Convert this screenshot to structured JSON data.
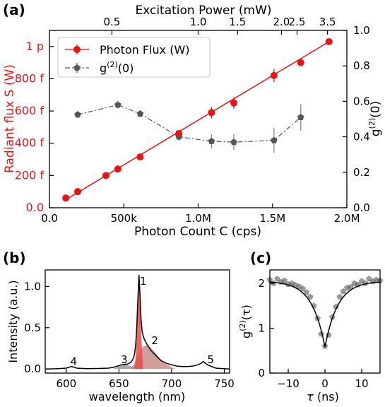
{
  "chart_data": [
    {
      "panel_label": "(a)",
      "type": "scatter",
      "xlabel": "Photon Count C (cps)",
      "x_ticks": [
        "0.0",
        "500k",
        "1.0M",
        "1.5M",
        "2.0M"
      ],
      "xlim": [
        0,
        2000000
      ],
      "ylabel_left": "Radiant flux S (W)",
      "y_left_ticks": [
        "0.0",
        "200 f",
        "400 f",
        "600 f",
        "800 f",
        "1 p"
      ],
      "ylim_left": [
        0,
        1.1e-12
      ],
      "ylabel_right_base": "g",
      "ylabel_right_sup": "(2)",
      "ylabel_right_tail": "(0)",
      "y_right_ticks": [
        "0.0",
        "0.2",
        "0.4",
        "0.6",
        "0.8",
        "1.0"
      ],
      "ylim_right": [
        0,
        1.0
      ],
      "top_xlabel": "Excitation Power (mW)",
      "top_ticks": [
        {
          "label": "0.5",
          "x": 420000
        },
        {
          "label": "1.0",
          "x": 1000000
        },
        {
          "label": "1.5",
          "x": 1265000
        },
        {
          "label": "2.0",
          "x": 1560000
        },
        {
          "label": "2.5",
          "x": 1665000
        },
        {
          "label": "3.5",
          "x": 1870000
        }
      ],
      "grid": false,
      "legend_position": "top-left",
      "colors": {
        "flux": "#ee1111",
        "g2": "#555555"
      },
      "series": [
        {
          "name": "Photon Flux (W)",
          "axis": "left",
          "style": "marker+fit-line",
          "x": [
            110000,
            190000,
            380000,
            460000,
            610000,
            870000,
            1090000,
            1240000,
            1510000,
            1690000,
            1880000
          ],
          "y": [
            6e-14,
            1e-13,
            2e-13,
            2.4e-13,
            3.15e-13,
            4.6e-13,
            5.9e-13,
            6.5e-13,
            8.2e-13,
            9e-13,
            1.03e-12
          ],
          "yerr": [
            1e-14,
            1e-14,
            1e-14,
            1e-14,
            1.2e-14,
            2e-14,
            3.5e-14,
            3.5e-14,
            4e-14,
            1.5e-14,
            1.5e-14
          ],
          "fit": {
            "x": [
              110000,
              1880000
            ],
            "y": [
              5e-14,
              1.03e-12
            ]
          }
        },
        {
          "name": "g^(2)(0)",
          "legend_base": "g",
          "legend_sup": "(2)",
          "legend_tail": "(0)",
          "axis": "right",
          "style": "marker+dashdot",
          "x": [
            190000,
            460000,
            610000,
            870000,
            1090000,
            1240000,
            1510000,
            1690000
          ],
          "y": [
            0.525,
            0.58,
            0.53,
            0.4,
            0.375,
            0.37,
            0.38,
            0.51
          ],
          "yerr": [
            0.02,
            0.02,
            0.02,
            0.025,
            0.04,
            0.045,
            0.07,
            0.075
          ]
        }
      ]
    },
    {
      "panel_label": "(b)",
      "type": "line",
      "xlabel": "wavelength (nm)",
      "ylabel": "Intensity (a.u.)",
      "xlim": [
        580,
        755
      ],
      "ylim": [
        -0.05,
        1.2
      ],
      "x_ticks": [
        "600",
        "650",
        "700",
        "750"
      ],
      "y_ticks": [
        "0.0",
        "0.5",
        "1.0"
      ],
      "peak_labels": [
        {
          "label": "1",
          "x": 673,
          "y": 1.02
        },
        {
          "label": "2",
          "x": 684,
          "y": 0.3
        },
        {
          "label": "3",
          "x": 655,
          "y": 0.07
        },
        {
          "label": "4",
          "x": 607,
          "y": 0.05
        },
        {
          "label": "5",
          "x": 737,
          "y": 0.07
        }
      ],
      "spectrum": {
        "x": [
          580,
          590,
          600,
          605,
          610,
          620,
          630,
          640,
          645,
          650,
          652,
          655,
          658,
          660,
          662,
          664,
          665,
          666,
          667,
          668,
          669,
          670,
          671,
          672,
          674,
          676,
          678,
          680,
          683,
          686,
          690,
          695,
          700,
          705,
          710,
          715,
          720,
          725,
          728,
          730,
          732,
          734,
          738,
          742,
          748,
          755
        ],
        "y": [
          0.0,
          0.002,
          0.01,
          0.03,
          0.01,
          0.004,
          0.006,
          0.01,
          0.02,
          0.04,
          0.05,
          0.055,
          0.06,
          0.07,
          0.09,
          0.14,
          0.2,
          0.32,
          0.55,
          0.85,
          1.14,
          0.9,
          0.6,
          0.45,
          0.36,
          0.31,
          0.27,
          0.23,
          0.19,
          0.15,
          0.1,
          0.07,
          0.05,
          0.035,
          0.03,
          0.03,
          0.035,
          0.05,
          0.07,
          0.09,
          0.07,
          0.05,
          0.03,
          0.01,
          0.005,
          0.0
        ]
      },
      "fills": [
        {
          "peak": "1",
          "color": "#e94b4b",
          "x": [
            664,
            665,
            666,
            667,
            668,
            669,
            670,
            671,
            672,
            673
          ],
          "y": [
            0.0,
            0.05,
            0.18,
            0.45,
            0.8,
            1.08,
            0.82,
            0.45,
            0.2,
            0.0
          ]
        },
        {
          "peak": "2",
          "color": "#c98d8d",
          "x": [
            660,
            664,
            668,
            672,
            676,
            680,
            684,
            688,
            692,
            696,
            700,
            704
          ],
          "y": [
            0.0,
            0.05,
            0.15,
            0.26,
            0.29,
            0.26,
            0.2,
            0.14,
            0.09,
            0.05,
            0.02,
            0.0
          ]
        },
        {
          "peak": "3",
          "color": "#999999",
          "x": [
            644,
            648,
            652,
            656,
            660,
            664,
            668
          ],
          "y": [
            0.0,
            0.02,
            0.04,
            0.055,
            0.04,
            0.02,
            0.0
          ]
        }
      ]
    },
    {
      "panel_label": "(c)",
      "type": "scatter",
      "xlabel": "τ (ns)",
      "xlabel_sym": "τ",
      "xlabel_tail": " (ns)",
      "ylabel_base": "g",
      "ylabel_sup": "(2)",
      "ylabel_tail": "(τ)",
      "xlim": [
        -15,
        15
      ],
      "ylim": [
        0,
        2.3
      ],
      "x_ticks": [
        "−10",
        "0",
        "10"
      ],
      "y_ticks": [
        "0",
        "1",
        "2"
      ],
      "fit": {
        "g_min": 0.58,
        "g_inf": 2.05,
        "tau_ns": 3.5
      },
      "samples": {
        "x": [
          -15,
          -14,
          -13,
          -12,
          -11,
          -10,
          -9,
          -8,
          -7,
          -6,
          -5,
          -4,
          -3,
          -2,
          -1,
          0,
          1,
          2,
          3,
          4,
          5,
          6,
          7,
          8,
          9,
          10,
          11,
          12,
          13,
          14,
          15
        ],
        "y": [
          2.08,
          2.0,
          2.1,
          2.03,
          2.06,
          1.98,
          2.0,
          1.96,
          1.93,
          1.88,
          1.8,
          1.7,
          1.5,
          1.22,
          0.87,
          0.6,
          0.85,
          1.25,
          1.48,
          1.7,
          1.82,
          1.9,
          1.92,
          2.0,
          1.97,
          2.05,
          2.0,
          2.1,
          2.04,
          2.08,
          2.06
        ]
      }
    }
  ]
}
